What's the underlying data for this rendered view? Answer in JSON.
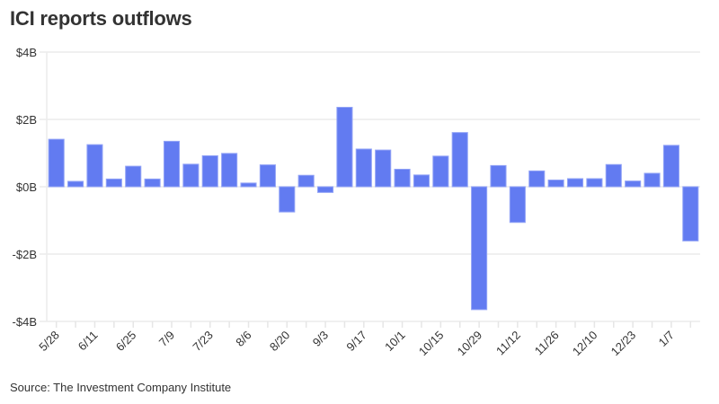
{
  "chart_data": {
    "type": "bar",
    "title": "ICI reports outflows",
    "source": "Source: The Investment Company Institute",
    "xlabel": "",
    "ylabel": "",
    "ylim": [
      -4,
      4
    ],
    "y_unit": "$B",
    "yticks": [
      4,
      2,
      0,
      -2,
      -4
    ],
    "ytick_labels": [
      "$4B",
      "$2B",
      "$0B",
      "-$2B",
      "-$4B"
    ],
    "grid": true,
    "bar_color": "#627bf1",
    "categories": [
      "5/28",
      "",
      "6/11",
      "",
      "6/25",
      "",
      "7/9",
      "",
      "7/23",
      "",
      "8/6",
      "",
      "8/20",
      "",
      "9/3",
      "",
      "9/17",
      "",
      "10/1",
      "",
      "10/15",
      "",
      "10/29",
      "",
      "11/12",
      "",
      "11/26",
      "",
      "12/10",
      "",
      "12/23",
      "",
      "1/7",
      ""
    ],
    "xtick_labels": [
      "5/28",
      "6/11",
      "6/25",
      "7/9",
      "7/23",
      "8/6",
      "8/20",
      "9/3",
      "9/17",
      "10/1",
      "10/15",
      "10/29",
      "11/12",
      "11/26",
      "12/10",
      "12/23",
      "1/7"
    ],
    "values": [
      1.41,
      0.16,
      1.25,
      0.23,
      0.61,
      0.23,
      1.35,
      0.67,
      0.92,
      0.99,
      0.11,
      0.65,
      -0.75,
      0.34,
      -0.17,
      2.36,
      1.12,
      1.09,
      0.52,
      0.35,
      0.91,
      1.61,
      -3.65,
      0.63,
      -1.06,
      0.47,
      0.2,
      0.24,
      0.24,
      0.66,
      0.17,
      0.4,
      1.23,
      -1.61
    ]
  }
}
